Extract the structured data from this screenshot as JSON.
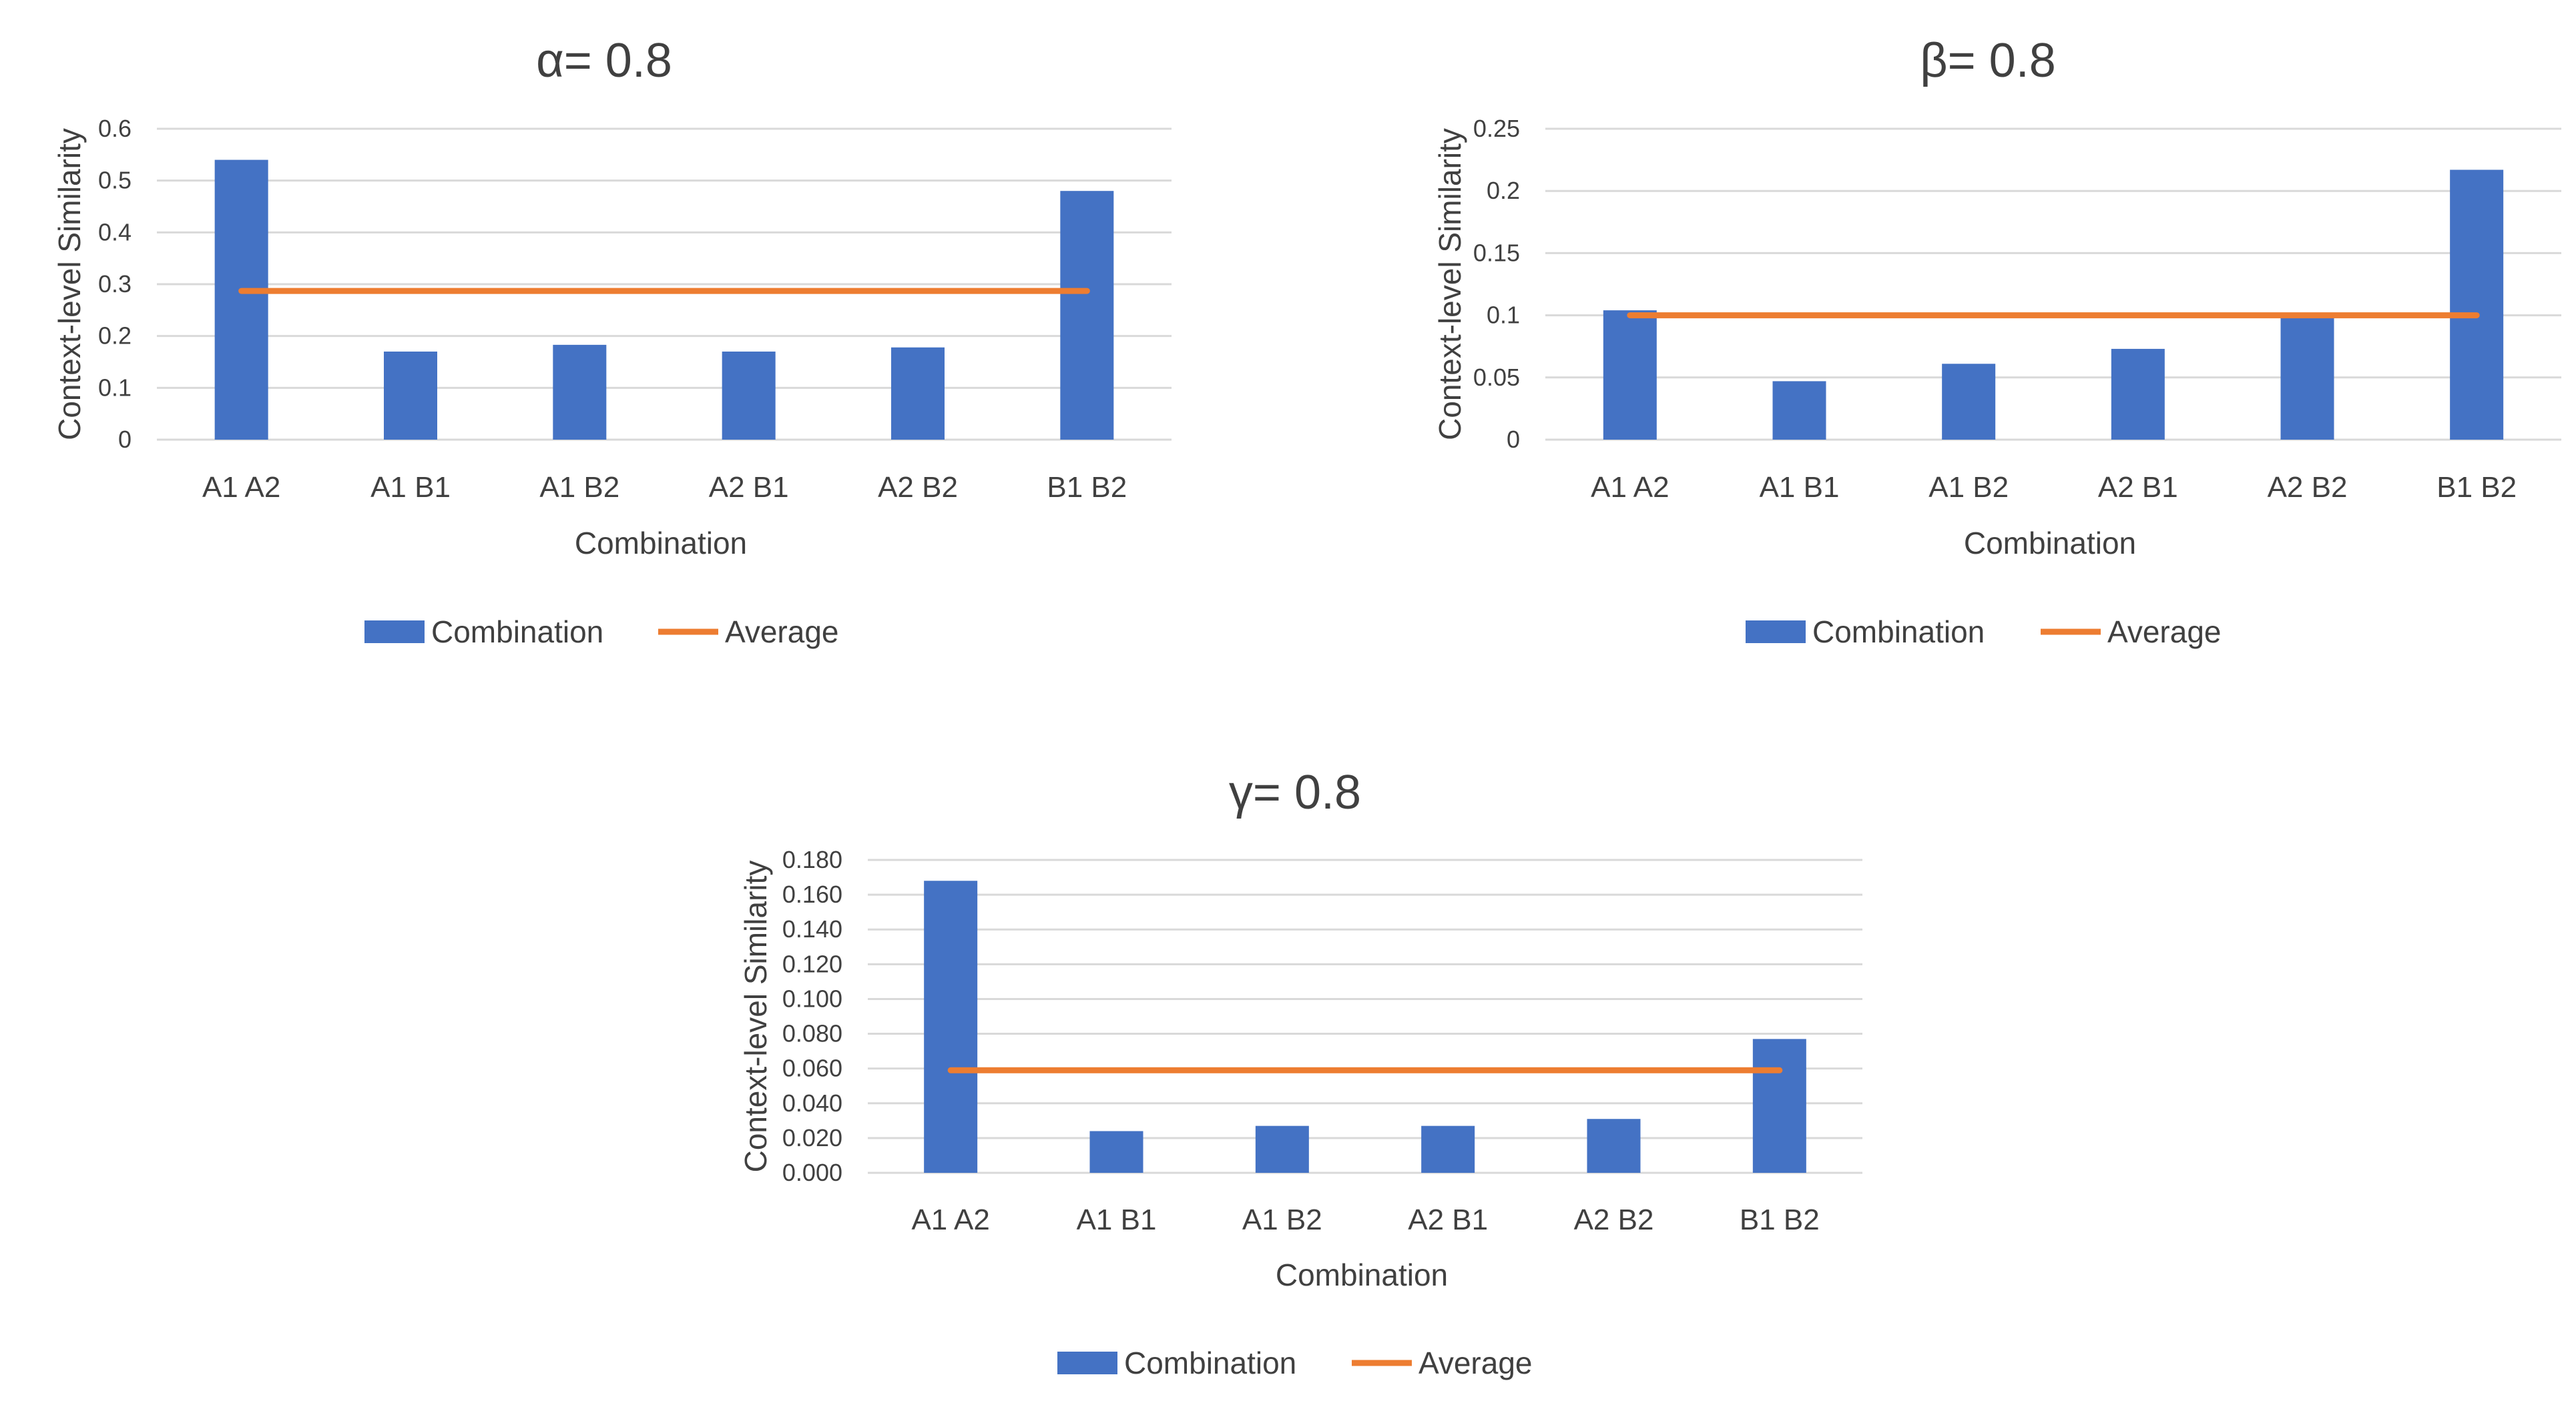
{
  "colors": {
    "bar": "#4472C4",
    "average": "#ED7D31",
    "grid": "#D9D9D9",
    "text": "#404040"
  },
  "chart_data": [
    {
      "type": "bar",
      "title": "α= 0.8",
      "xlabel": "Combination",
      "ylabel": "Context-level Similarity",
      "categories": [
        "A1 A2",
        "A1 B1",
        "A1 B2",
        "A2 B1",
        "A2 B2",
        "B1 B2"
      ],
      "ylim": [
        0,
        0.6
      ],
      "yticks": [
        "0",
        "0.1",
        "0.2",
        "0.3",
        "0.4",
        "0.5",
        "0.6"
      ],
      "grid": true,
      "legend": "bottom",
      "series": [
        {
          "name": "Combination",
          "type": "bar",
          "values": [
            0.54,
            0.17,
            0.183,
            0.17,
            0.178,
            0.48
          ]
        },
        {
          "name": "Average",
          "type": "line",
          "values": [
            0.287,
            0.287,
            0.287,
            0.287,
            0.287,
            0.287
          ]
        }
      ]
    },
    {
      "type": "bar",
      "title": "β= 0.8",
      "xlabel": "Combination",
      "ylabel": "Context-level Similarity",
      "categories": [
        "A1 A2",
        "A1 B1",
        "A1 B2",
        "A2 B1",
        "A2 B2",
        "B1 B2"
      ],
      "ylim": [
        0,
        0.25
      ],
      "yticks": [
        "0",
        "0.05",
        "0.1",
        "0.15",
        "0.2",
        "0.25"
      ],
      "grid": true,
      "legend": "bottom",
      "series": [
        {
          "name": "Combination",
          "type": "bar",
          "values": [
            0.104,
            0.047,
            0.061,
            0.073,
            0.1,
            0.217
          ]
        },
        {
          "name": "Average",
          "type": "line",
          "values": [
            0.1,
            0.1,
            0.1,
            0.1,
            0.1,
            0.1
          ]
        }
      ]
    },
    {
      "type": "bar",
      "title": "γ= 0.8",
      "xlabel": "Combination",
      "ylabel": "Context-level Similarity",
      "categories": [
        "A1 A2",
        "A1 B1",
        "A1 B2",
        "A2 B1",
        "A2 B2",
        "B1 B2"
      ],
      "ylim": [
        0,
        0.18
      ],
      "yticks": [
        "0.000",
        "0.020",
        "0.040",
        "0.060",
        "0.080",
        "0.100",
        "0.120",
        "0.140",
        "0.160",
        "0.180"
      ],
      "grid": true,
      "legend": "bottom",
      "series": [
        {
          "name": "Combination",
          "type": "bar",
          "values": [
            0.168,
            0.024,
            0.027,
            0.027,
            0.031,
            0.077
          ]
        },
        {
          "name": "Average",
          "type": "line",
          "values": [
            0.059,
            0.059,
            0.059,
            0.059,
            0.059,
            0.059
          ]
        }
      ]
    }
  ]
}
